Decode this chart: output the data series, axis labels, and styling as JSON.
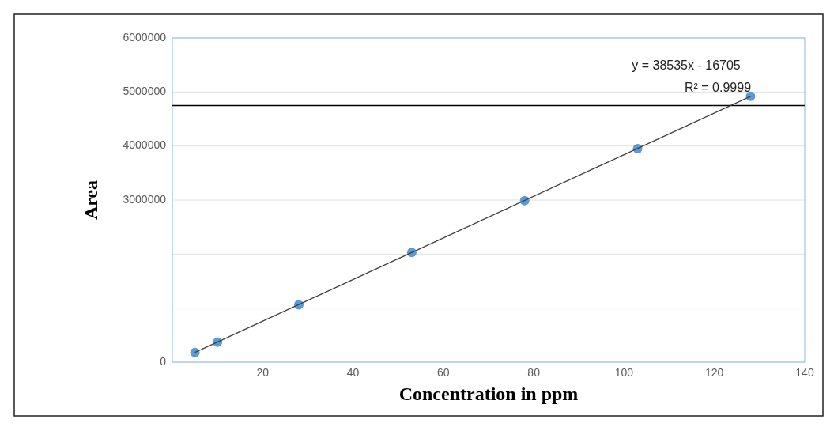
{
  "chart_data": {
    "type": "scatter",
    "xlabel": "Concentration in ppm",
    "ylabel": "Area",
    "xlim": [
      0,
      140
    ],
    "xticks": [
      20,
      40,
      60,
      80,
      100,
      120,
      140
    ],
    "ylim": [
      0,
      6000000
    ],
    "yticks": [
      0,
      {
        "value": 1000000,
        "label": null
      },
      {
        "value": 2000000,
        "label": null
      },
      3000000,
      4000000,
      5000000,
      6000000
    ],
    "grid": "y",
    "series": [
      {
        "marker": "circle",
        "color": "#5b9bd5",
        "x": [
          5,
          10,
          28,
          53,
          78,
          103,
          128
        ],
        "values": [
          180000,
          370000,
          1060000,
          2030000,
          2990000,
          3950000,
          4920000
        ]
      },
      {
        "type": "line",
        "color": "#404040",
        "x": [
          5,
          128
        ],
        "values": [
          180000,
          4920000
        ]
      }
    ],
    "ref_lines": [
      {
        "axis": "y",
        "value": 4750000,
        "color": "#000000"
      }
    ],
    "annotations": [
      "y = 38535x - 16705",
      "R² = 0.9999"
    ]
  }
}
